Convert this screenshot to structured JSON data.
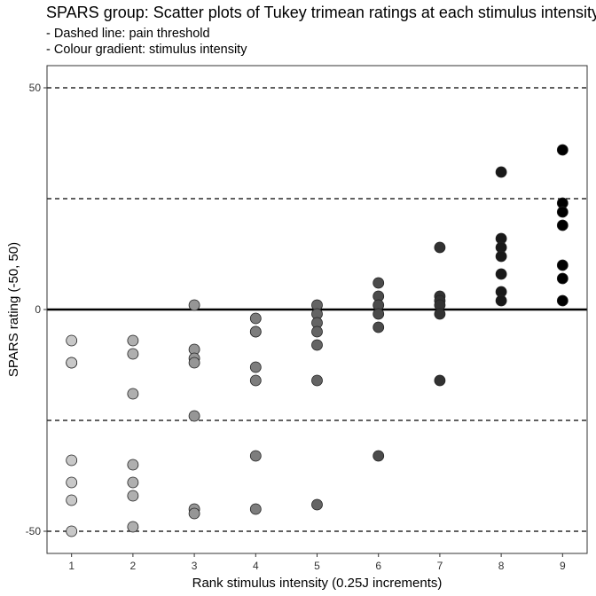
{
  "title": "SPARS group: Scatter plots of Tukey trimean ratings at each stimulus intensity",
  "subtitle_lines": [
    "- Dashed line: pain threshold",
    "- Colour gradient: stimulus intensity"
  ],
  "chart_data": {
    "type": "scatter",
    "title": "SPARS group: Scatter plots of Tukey trimean ratings at each stimulus intensity",
    "xlabel": "Rank stimulus intensity (0.25J increments)",
    "ylabel": "SPARS rating (-50, 50)",
    "xlim": [
      0.6,
      9.4
    ],
    "ylim": [
      -55,
      55
    ],
    "x_ticks": [
      1,
      2,
      3,
      4,
      5,
      6,
      7,
      8,
      9
    ],
    "y_ticks": [
      -50,
      0,
      50
    ],
    "reference_lines": [
      {
        "y": 0,
        "style": "solid"
      },
      {
        "y": 50,
        "style": "dashed"
      },
      {
        "y": 25,
        "style": "dashed"
      },
      {
        "y": -25,
        "style": "dashed"
      },
      {
        "y": -50,
        "style": "dashed"
      }
    ],
    "grid": false,
    "colour_gradient": [
      "#c8c8c8",
      "#000000"
    ],
    "points": [
      {
        "x": 1,
        "y": -7
      },
      {
        "x": 1,
        "y": -12
      },
      {
        "x": 1,
        "y": -12
      },
      {
        "x": 1,
        "y": -34
      },
      {
        "x": 1,
        "y": -39
      },
      {
        "x": 1,
        "y": -43
      },
      {
        "x": 1,
        "y": -50
      },
      {
        "x": 2,
        "y": -7
      },
      {
        "x": 2,
        "y": -10
      },
      {
        "x": 2,
        "y": -19
      },
      {
        "x": 2,
        "y": -35
      },
      {
        "x": 2,
        "y": -39
      },
      {
        "x": 2,
        "y": -42
      },
      {
        "x": 2,
        "y": -49
      },
      {
        "x": 3,
        "y": 1
      },
      {
        "x": 3,
        "y": -9
      },
      {
        "x": 3,
        "y": -11
      },
      {
        "x": 3,
        "y": -12
      },
      {
        "x": 3,
        "y": -24
      },
      {
        "x": 3,
        "y": -45
      },
      {
        "x": 3,
        "y": -46
      },
      {
        "x": 4,
        "y": -2
      },
      {
        "x": 4,
        "y": -5
      },
      {
        "x": 4,
        "y": -5
      },
      {
        "x": 4,
        "y": -13
      },
      {
        "x": 4,
        "y": -16
      },
      {
        "x": 4,
        "y": -33
      },
      {
        "x": 4,
        "y": -45
      },
      {
        "x": 5,
        "y": 1
      },
      {
        "x": 5,
        "y": -1
      },
      {
        "x": 5,
        "y": -3
      },
      {
        "x": 5,
        "y": -5
      },
      {
        "x": 5,
        "y": -8
      },
      {
        "x": 5,
        "y": -16
      },
      {
        "x": 5,
        "y": -44
      },
      {
        "x": 6,
        "y": 6
      },
      {
        "x": 6,
        "y": 3
      },
      {
        "x": 6,
        "y": 1
      },
      {
        "x": 6,
        "y": -1
      },
      {
        "x": 6,
        "y": -4
      },
      {
        "x": 6,
        "y": -33
      },
      {
        "x": 7,
        "y": 14
      },
      {
        "x": 7,
        "y": 3
      },
      {
        "x": 7,
        "y": 2
      },
      {
        "x": 7,
        "y": 1
      },
      {
        "x": 7,
        "y": -1
      },
      {
        "x": 7,
        "y": -16
      },
      {
        "x": 8,
        "y": 31
      },
      {
        "x": 8,
        "y": 16
      },
      {
        "x": 8,
        "y": 14
      },
      {
        "x": 8,
        "y": 12
      },
      {
        "x": 8,
        "y": 8
      },
      {
        "x": 8,
        "y": 4
      },
      {
        "x": 8,
        "y": 2
      },
      {
        "x": 9,
        "y": 36
      },
      {
        "x": 9,
        "y": 24
      },
      {
        "x": 9,
        "y": 22
      },
      {
        "x": 9,
        "y": 19
      },
      {
        "x": 9,
        "y": 10
      },
      {
        "x": 9,
        "y": 7
      },
      {
        "x": 9,
        "y": 2
      }
    ]
  }
}
